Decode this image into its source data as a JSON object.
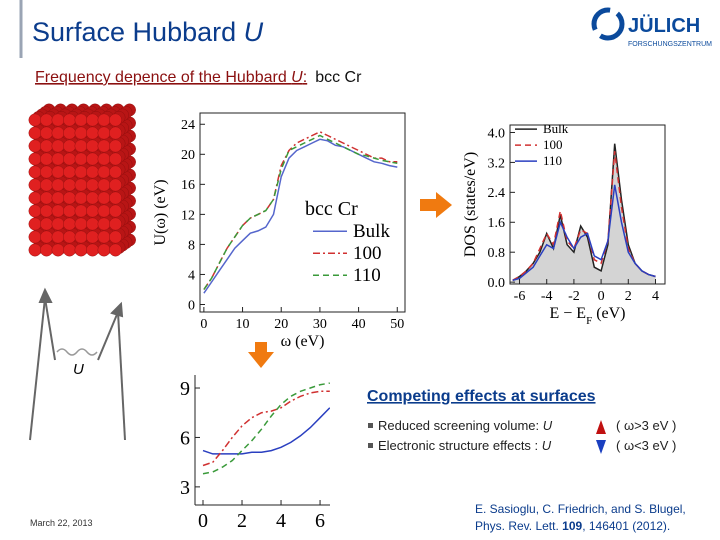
{
  "header": {
    "title": "Surface Hubbard ",
    "title_italic": "U",
    "logo": "JÜLICH",
    "logo_sub": "FORSCHUNGSZENTRUM"
  },
  "subtitle": {
    "underlined": "Frequency depence of the Hubbard ",
    "underlined_italic": "U",
    "underlined_end": ":",
    "rest": "bcc Cr"
  },
  "lattice_label": "U",
  "chart_data": [
    {
      "type": "line",
      "xlabel": "ω (eV)",
      "ylabel": "U(ω) (eV)",
      "legend_title": "bcc Cr",
      "x": [
        0,
        2,
        4,
        6,
        8,
        10,
        12,
        14,
        16,
        18,
        20,
        22,
        24,
        26,
        28,
        30,
        32,
        34,
        36,
        38,
        40,
        42,
        44,
        46,
        48,
        50
      ],
      "xlim": [
        -1,
        52
      ],
      "ylim": [
        -1,
        25.5
      ],
      "xticks": [
        0,
        10,
        20,
        30,
        40,
        50
      ],
      "yticks": [
        0,
        4,
        8,
        12,
        16,
        20,
        24
      ],
      "series": [
        {
          "name": "Bulk",
          "color": "#5566cc",
          "dash": "solid",
          "values": [
            1.5,
            3,
            4.5,
            6,
            7.5,
            8.5,
            9.5,
            9.8,
            10.3,
            12,
            17,
            19.5,
            20.5,
            21,
            21.5,
            22,
            21.8,
            21.2,
            21,
            20.5,
            20,
            19.5,
            19,
            18.8,
            18.5,
            18.3
          ]
        },
        {
          "name": "100",
          "color": "#d03030",
          "dash": "dashdot",
          "values": [
            2,
            3.5,
            5.5,
            7.5,
            9,
            10.5,
            11.5,
            12,
            12.5,
            14,
            18.5,
            20.5,
            21.5,
            22,
            22.5,
            23,
            22.5,
            22,
            21.5,
            21,
            20.5,
            20,
            19.5,
            19.5,
            19,
            19
          ]
        },
        {
          "name": "110",
          "color": "#3a9a3a",
          "dash": "dashed",
          "values": [
            2,
            3.5,
            5.5,
            7.5,
            9,
            10.5,
            11.5,
            12,
            12.5,
            14,
            18,
            20.5,
            21,
            21.5,
            22,
            22.5,
            22,
            21.5,
            21,
            20.5,
            20,
            19.8,
            19.5,
            19.2,
            19,
            18.8
          ]
        }
      ]
    },
    {
      "type": "line",
      "xlabel": [
        "E − E",
        "F",
        " (eV)"
      ],
      "ylabel": "DOS (states/eV)",
      "x": [
        -6.5,
        -6,
        -5.5,
        -5,
        -4.5,
        -4,
        -3.5,
        -3,
        -2.5,
        -2,
        -1.5,
        -1,
        -0.5,
        0,
        0.5,
        1,
        1.5,
        2,
        2.5,
        3,
        3.5,
        4
      ],
      "xlim": [
        -6.7,
        4.7
      ],
      "ylim": [
        -0.05,
        4.2
      ],
      "xticks": [
        -6,
        -4,
        -2,
        0,
        2,
        4
      ],
      "yticks": [
        {
          "value": 0,
          "label": "0.0"
        },
        {
          "value": 0.8,
          "label": "0.8"
        },
        {
          "value": 1.6,
          "label": "1.6"
        },
        {
          "value": 2.4,
          "label": "2.4"
        },
        {
          "value": 3.2,
          "label": "3.2"
        },
        {
          "value": 4,
          "label": "4.0"
        }
      ],
      "series": [
        {
          "name": "Bulk",
          "color": "#222222",
          "dash": "solid",
          "fill": "#d4d4d4",
          "values": [
            0.05,
            0.15,
            0.3,
            0.5,
            0.8,
            1.3,
            0.9,
            1.8,
            1.0,
            0.8,
            1.5,
            1.2,
            0.4,
            0.3,
            1.0,
            3.7,
            2.2,
            1.0,
            0.5,
            0.3,
            0.2,
            0.15
          ]
        },
        {
          "name": "100",
          "color": "#d03030",
          "dash": "dashed",
          "values": [
            0.05,
            0.15,
            0.3,
            0.5,
            0.9,
            1.3,
            1.0,
            1.9,
            1.1,
            0.9,
            1.4,
            1.3,
            0.6,
            0.5,
            1.1,
            3.5,
            2.0,
            0.9,
            0.5,
            0.3,
            0.2,
            0.15
          ]
        },
        {
          "name": "110",
          "color": "#2a3fc0",
          "dash": "solid",
          "values": [
            0.05,
            0.1,
            0.25,
            0.4,
            0.7,
            1.0,
            0.9,
            1.6,
            1.2,
            0.9,
            1.2,
            1.3,
            0.7,
            0.6,
            1.1,
            2.6,
            1.6,
            0.8,
            0.5,
            0.3,
            0.2,
            0.15
          ]
        }
      ]
    },
    {
      "type": "line",
      "x": [
        0,
        0.5,
        1,
        1.5,
        2,
        2.5,
        3,
        3.5,
        4,
        4.5,
        5,
        5.5,
        6,
        6.5
      ],
      "xlim": [
        -0.41,
        6.51
      ],
      "ylim": [
        1.9,
        9.79
      ],
      "xticks": [
        0,
        2,
        4,
        6
      ],
      "yticks": [
        3,
        6,
        9
      ],
      "series": [
        {
          "color": "#2a3fc0",
          "dash": "solid",
          "values": [
            5.2,
            5.0,
            5.0,
            5.0,
            5.0,
            5.1,
            5.1,
            5.2,
            5.4,
            5.7,
            6.1,
            6.6,
            7.2,
            7.8
          ]
        },
        {
          "color": "#d03030",
          "dash": "dashdot",
          "values": [
            4.3,
            4.5,
            5.2,
            6.0,
            6.7,
            7.2,
            7.5,
            7.6,
            7.8,
            8.2,
            8.5,
            8.7,
            8.8,
            8.8
          ]
        },
        {
          "color": "#3a9a3a",
          "dash": "dashed",
          "values": [
            3.8,
            3.9,
            4.2,
            4.6,
            5.2,
            5.8,
            6.5,
            7.3,
            8.0,
            8.5,
            8.8,
            9.0,
            9.2,
            9.3
          ]
        }
      ]
    }
  ],
  "effects": {
    "heading": "Competing effects at surfaces",
    "items": [
      {
        "text": "Reduced screening volume: ",
        "symbol": "U",
        "range": "( ω>3 eV )"
      },
      {
        "text": "Electronic structure effects : ",
        "symbol": "U",
        "range": "( ω<3 eV )"
      }
    ]
  },
  "citation": {
    "line1": "E. Sasioglu, C. Friedrich, and S. Blugel,",
    "journal": "Phys. Rev. Lett. ",
    "volume": "109",
    "pages": ", 146401 (2012)."
  },
  "date": "March 22, 2013"
}
